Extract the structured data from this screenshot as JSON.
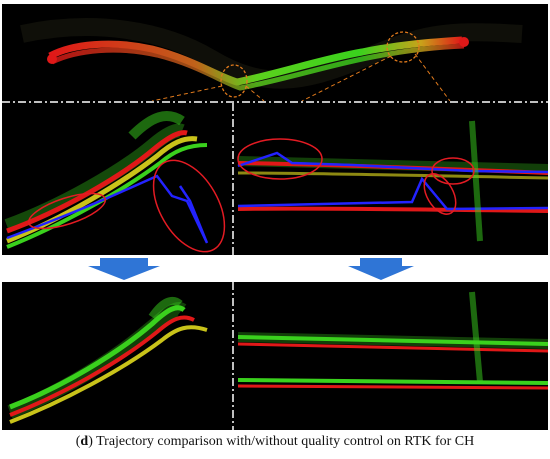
{
  "figure": {
    "caption_label": "d",
    "caption_text": "Trajectory comparison with/without quality control on RTK for CH"
  },
  "colors": {
    "background": "#000000",
    "trajectory_red": "#e01818",
    "trajectory_green": "#3ad11d",
    "trajectory_yellow": "#c9c31a",
    "rtk_blue": "#2323ff",
    "highlight_circle": "#e31b23",
    "zoom_dash": "#e07a1c",
    "arrow_blue": "#2f75d6",
    "divider": "#ffffff"
  }
}
